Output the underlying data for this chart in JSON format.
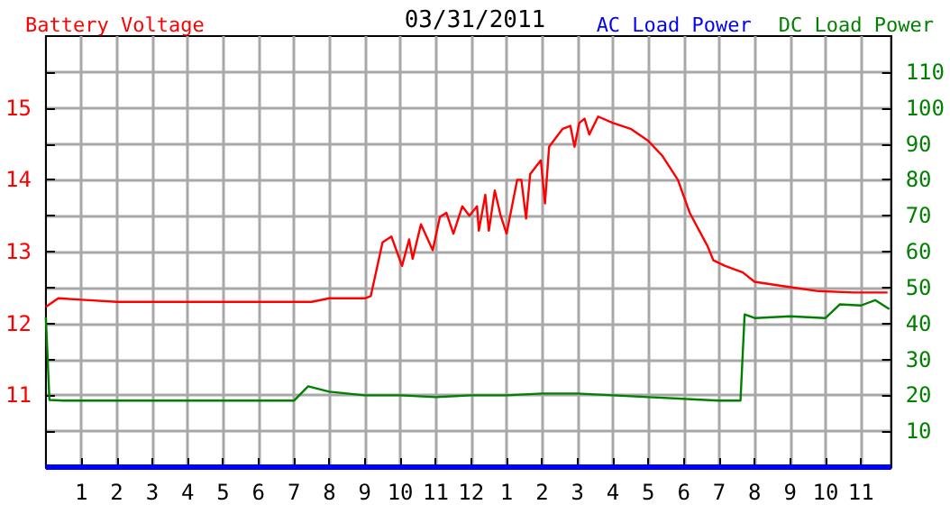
{
  "chart_data": {
    "type": "line",
    "title": "03/31/2011",
    "legend": "top",
    "grid": true,
    "marker": "none",
    "line_style": "solid",
    "xlim": [
      "2011-03-31T00:00",
      "2011-03-31T23:51"
    ],
    "xticks": [
      {
        "value": "2011-03-31T01:00",
        "label": "1"
      },
      {
        "value": "2011-03-31T02:00",
        "label": "2"
      },
      {
        "value": "2011-03-31T03:00",
        "label": "3"
      },
      {
        "value": "2011-03-31T04:00",
        "label": "4"
      },
      {
        "value": "2011-03-31T05:00",
        "label": "5"
      },
      {
        "value": "2011-03-31T06:00",
        "label": "6"
      },
      {
        "value": "2011-03-31T07:00",
        "label": "7"
      },
      {
        "value": "2011-03-31T08:00",
        "label": "8"
      },
      {
        "value": "2011-03-31T09:00",
        "label": "9"
      },
      {
        "value": "2011-03-31T10:00",
        "label": "10"
      },
      {
        "value": "2011-03-31T11:00",
        "label": "11"
      },
      {
        "value": "2011-03-31T12:00",
        "label": "12"
      },
      {
        "value": "2011-03-31T13:00",
        "label": "1"
      },
      {
        "value": "2011-03-31T14:00",
        "label": "2"
      },
      {
        "value": "2011-03-31T15:00",
        "label": "3"
      },
      {
        "value": "2011-03-31T16:00",
        "label": "4"
      },
      {
        "value": "2011-03-31T17:00",
        "label": "5"
      },
      {
        "value": "2011-03-31T18:00",
        "label": "6"
      },
      {
        "value": "2011-03-31T19:00",
        "label": "7"
      },
      {
        "value": "2011-03-31T20:00",
        "label": "8"
      },
      {
        "value": "2011-03-31T21:00",
        "label": "9"
      },
      {
        "value": "2011-03-31T22:00",
        "label": "10"
      },
      {
        "value": "2011-03-31T23:00",
        "label": "11"
      }
    ],
    "ylim": [
      10,
      16
    ],
    "yticks": [
      {
        "value": 10.5,
        "label": null
      },
      11,
      {
        "value": 11.5,
        "label": null
      },
      12,
      {
        "value": 12.5,
        "label": null
      },
      13,
      {
        "value": 13.5,
        "label": null
      },
      14,
      {
        "value": 14.5,
        "label": null
      },
      15,
      {
        "value": 15.5,
        "label": null
      }
    ],
    "y2lim": [
      0,
      120
    ],
    "y2ticks": [
      10,
      20,
      30,
      40,
      50,
      60,
      70,
      80,
      90,
      100,
      110
    ],
    "series": [
      {
        "name": "Battery Voltage",
        "color": "#ff0000",
        "x": [
          "2011-03-31T00:00",
          "2011-03-31T00:21",
          "2011-03-31T01:00",
          "2011-03-31T02:00",
          "2011-03-31T03:00",
          "2011-03-31T04:00",
          "2011-03-31T05:00",
          "2011-03-31T06:00",
          "2011-03-31T07:00",
          "2011-03-31T07:30",
          "2011-03-31T08:00",
          "2011-03-31T08:30",
          "2011-03-31T09:00",
          "2011-03-31T09:10",
          "2011-03-31T09:30",
          "2011-03-31T09:45",
          "2011-03-31T10:03",
          "2011-03-31T10:15",
          "2011-03-31T10:21",
          "2011-03-31T10:35",
          "2011-03-31T10:55",
          "2011-03-31T11:07",
          "2011-03-31T11:18",
          "2011-03-31T11:30",
          "2011-03-31T11:45",
          "2011-03-31T11:57",
          "2011-03-31T12:10",
          "2011-03-31T12:13",
          "2011-03-31T12:24",
          "2011-03-31T12:30",
          "2011-03-31T12:40",
          "2011-03-31T12:50",
          "2011-03-31T13:00",
          "2011-03-31T13:18",
          "2011-03-31T13:25",
          "2011-03-31T13:33",
          "2011-03-31T13:40",
          "2011-03-31T13:58",
          "2011-03-31T14:05",
          "2011-03-31T14:12",
          "2011-03-31T14:35",
          "2011-03-31T14:48",
          "2011-03-31T14:55",
          "2011-03-31T15:03",
          "2011-03-31T15:12",
          "2011-03-31T15:20",
          "2011-03-31T15:35",
          "2011-03-31T16:00",
          "2011-03-31T16:30",
          "2011-03-31T17:00",
          "2011-03-31T17:24",
          "2011-03-31T17:50",
          "2011-03-31T18:10",
          "2011-03-31T18:40",
          "2011-03-31T18:50",
          "2011-03-31T19:10",
          "2011-03-31T19:40",
          "2011-03-31T20:00",
          "2011-03-31T20:48",
          "2011-03-31T21:48",
          "2011-03-31T22:48",
          "2011-03-31T23:45"
        ],
        "values": [
          12.23,
          12.35,
          12.33,
          12.3,
          12.3,
          12.3,
          12.3,
          12.3,
          12.3,
          12.3,
          12.35,
          12.35,
          12.35,
          12.38,
          13.13,
          13.21,
          12.8,
          13.17,
          12.9,
          13.38,
          13.02,
          13.48,
          13.54,
          13.25,
          13.63,
          13.5,
          13.63,
          13.29,
          13.79,
          13.29,
          13.85,
          13.5,
          13.25,
          14.0,
          14.0,
          13.46,
          14.08,
          14.27,
          13.67,
          14.46,
          14.71,
          14.75,
          14.46,
          14.79,
          14.85,
          14.63,
          14.88,
          14.79,
          14.71,
          14.54,
          14.33,
          14.0,
          13.54,
          13.08,
          12.88,
          12.8,
          12.71,
          12.58,
          12.52,
          12.45,
          12.43,
          12.43
        ]
      },
      {
        "name": "AC Load Power",
        "color": "#0000ff",
        "axis": "y2",
        "x": [
          "2011-03-31T00:00",
          "2011-03-31T23:51"
        ],
        "values": [
          0,
          0
        ]
      },
      {
        "name": "DC Load Power",
        "color": "#008000",
        "axis": "y2",
        "x": [
          "2011-03-31T00:00",
          "2011-03-31T00:06",
          "2011-03-31T00:30",
          "2011-03-31T01:00",
          "2011-03-31T02:00",
          "2011-03-31T03:00",
          "2011-03-31T04:00",
          "2011-03-31T05:00",
          "2011-03-31T06:00",
          "2011-03-31T07:00",
          "2011-03-31T07:24",
          "2011-03-31T08:00",
          "2011-03-31T09:00",
          "2011-03-31T10:00",
          "2011-03-31T11:00",
          "2011-03-31T12:00",
          "2011-03-31T13:00",
          "2011-03-31T14:00",
          "2011-03-31T15:00",
          "2011-03-31T16:00",
          "2011-03-31T17:00",
          "2011-03-31T18:00",
          "2011-03-31T19:00",
          "2011-03-31T19:36",
          "2011-03-31T19:43",
          "2011-03-31T20:00",
          "2011-03-31T21:00",
          "2011-03-31T22:00",
          "2011-03-31T22:24",
          "2011-03-31T23:00",
          "2011-03-31T23:24",
          "2011-03-31T23:48"
        ],
        "values": [
          41.7,
          18.7,
          18.5,
          18.5,
          18.5,
          18.5,
          18.5,
          18.5,
          18.5,
          18.5,
          22.5,
          21,
          20,
          20,
          19.5,
          20,
          20,
          20.5,
          20.5,
          20,
          19.5,
          19,
          18.5,
          18.5,
          42.5,
          41.5,
          42,
          41.5,
          45.3,
          45,
          46.5,
          44
        ]
      }
    ]
  }
}
